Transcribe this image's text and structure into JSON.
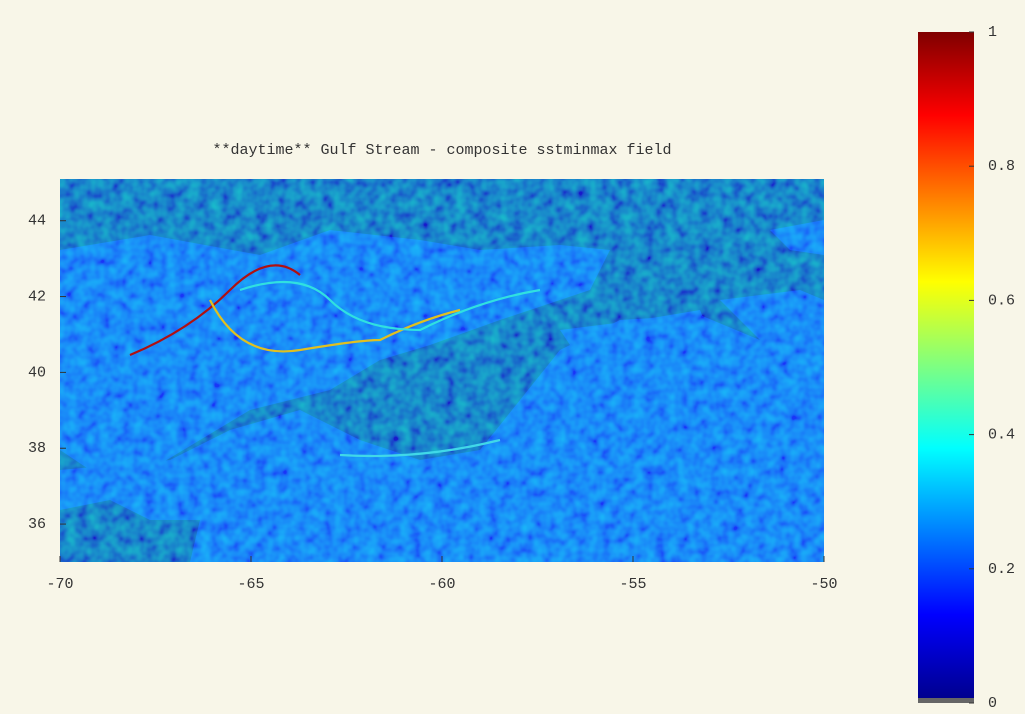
{
  "chart_data": {
    "type": "heatmap",
    "title": "**daytime** Gulf Stream - composite sstminmax field",
    "xlim": [
      -70,
      -50
    ],
    "xticks": [
      -70,
      -65,
      -60,
      -55,
      -50
    ],
    "ylim": [
      35,
      45.1
    ],
    "yticks": [
      36,
      38,
      40,
      42,
      44
    ],
    "colorbar": {
      "lim": [
        0,
        1
      ],
      "ticks": [
        0,
        0.2,
        0.4,
        0.6,
        0.8,
        1
      ],
      "colormap": "jet"
    },
    "missing_color": "#666666"
  }
}
